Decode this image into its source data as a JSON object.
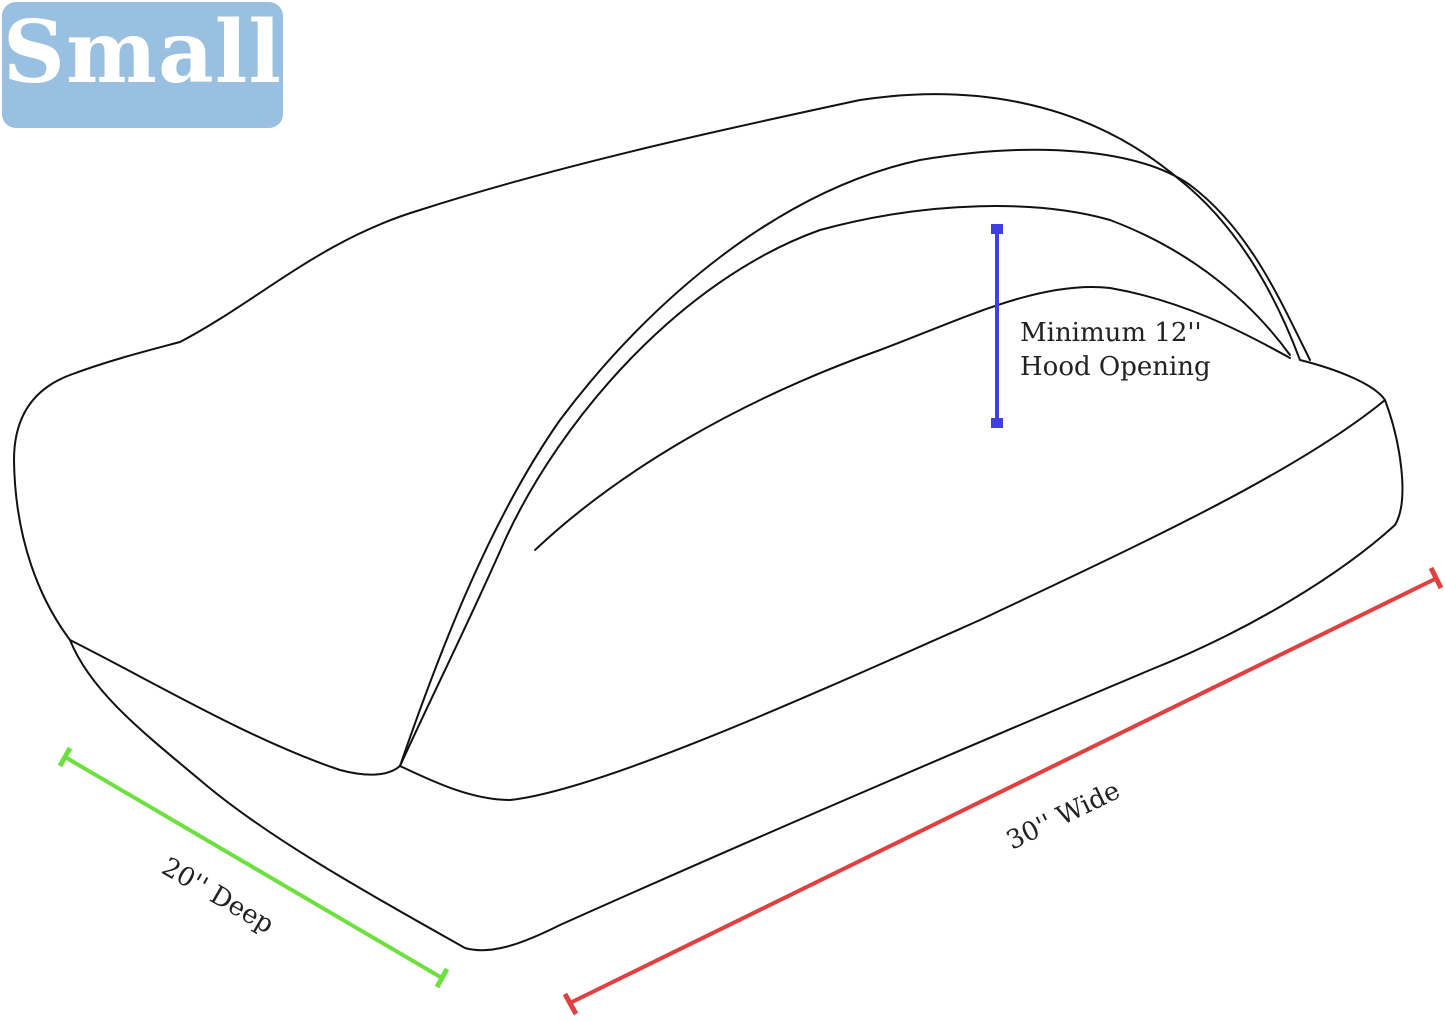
{
  "badge": {
    "label": "Small",
    "color": "#99bfe1"
  },
  "dimensions": {
    "hood": {
      "line1": "Minimum 12''",
      "line2": "Hood Opening",
      "color": "#4040e0"
    },
    "width": {
      "label": "30'' Wide",
      "color": "#e04040"
    },
    "depth": {
      "label": "20'' Deep",
      "color": "#6de040"
    }
  }
}
